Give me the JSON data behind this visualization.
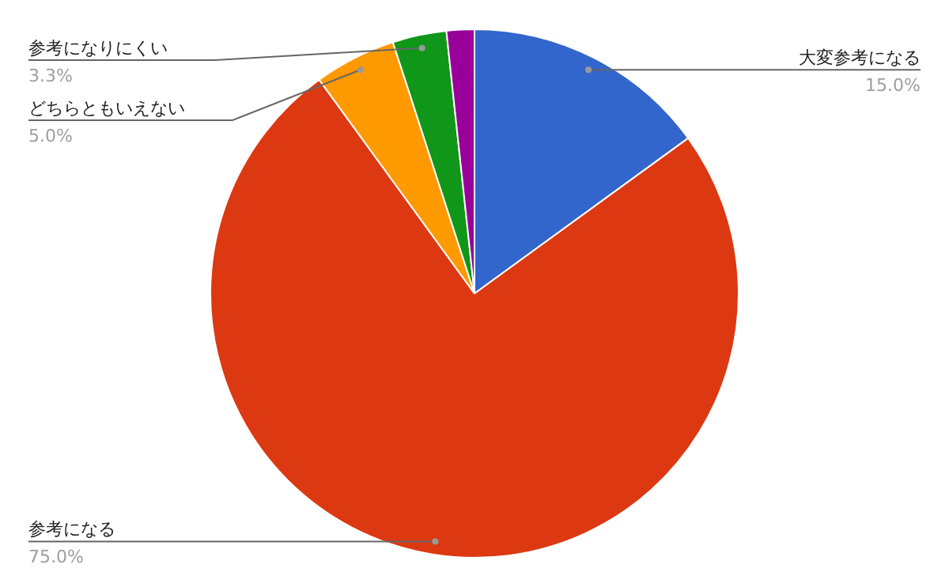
{
  "chart_data": {
    "type": "pie",
    "categories": [
      "大変参考になる",
      "参考になる",
      "どちらともいえない",
      "参考になりにくい",
      null
    ],
    "values": [
      15.0,
      75.0,
      5.0,
      3.3,
      1.7
    ],
    "colors": [
      "#3366cc",
      "#dc3912",
      "#ff9900",
      "#109618",
      "#990099"
    ],
    "value_labels": [
      "15.0%",
      "75.0%",
      "5.0%",
      "3.3%",
      null
    ],
    "legend": false
  }
}
